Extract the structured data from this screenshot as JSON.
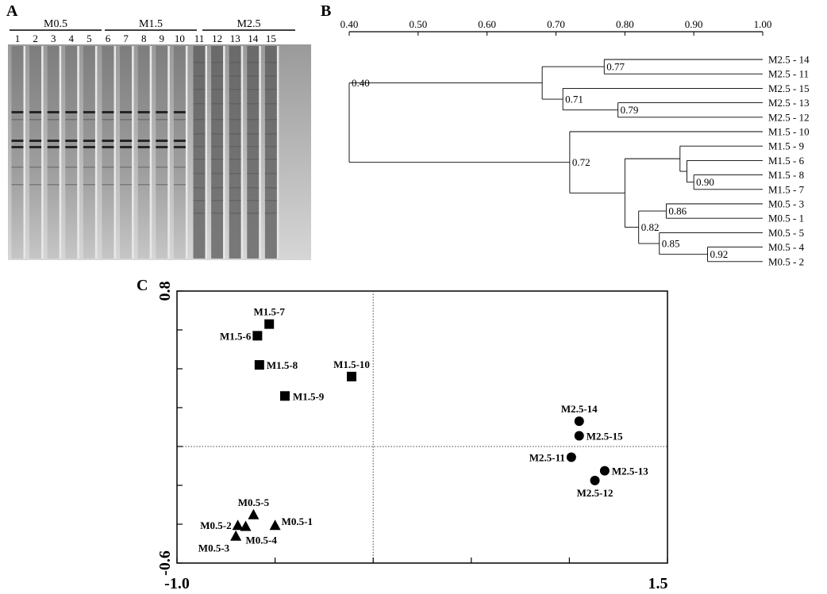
{
  "panels": {
    "a": "A",
    "b": "B",
    "c": "C"
  },
  "gel": {
    "groups": [
      "M0.5",
      "M1.5",
      "M2.5"
    ],
    "lanes": [
      "1",
      "2",
      "3",
      "4",
      "5",
      "6",
      "7",
      "8",
      "9",
      "10",
      "11",
      "12",
      "13",
      "14",
      "15"
    ]
  },
  "chart_data": [
    {
      "type": "dendrogram",
      "axis_ticks": [
        "0.40",
        "0.50",
        "0.60",
        "0.70",
        "0.80",
        "0.90",
        "1.00"
      ],
      "xlim": [
        0.4,
        1.0
      ],
      "leaves": [
        "M2.5 - 14",
        "M2.5 - 11",
        "M2.5 - 15",
        "M2.5 - 13",
        "M2.5 - 12",
        "M1.5 - 10",
        "M1.5 - 9",
        "M1.5 - 6",
        "M1.5 - 8",
        "M1.5 - 7",
        "M0.5 - 3",
        "M0.5 - 1",
        "M0.5 - 5",
        "M0.5 - 4",
        "M0.5 - 2"
      ],
      "nodes": [
        {
          "id": "n77",
          "similarity": 0.77,
          "label": "0.77",
          "children": [
            "M2.5 - 14",
            "M2.5 - 11"
          ]
        },
        {
          "id": "n79",
          "similarity": 0.79,
          "label": "0.79",
          "children": [
            "M2.5 - 13",
            "M2.5 - 12"
          ]
        },
        {
          "id": "n71",
          "similarity": 0.71,
          "label": "0.71",
          "children": [
            "M2.5 - 15",
            "n79"
          ]
        },
        {
          "id": "n68",
          "similarity": 0.68,
          "label": "",
          "children": [
            "n77",
            "n71"
          ]
        },
        {
          "id": "n90",
          "similarity": 0.9,
          "label": "0.90",
          "children": [
            "M1.5 - 8",
            "M1.5 - 7"
          ]
        },
        {
          "id": "n89",
          "similarity": 0.89,
          "label": "",
          "children": [
            "M1.5 - 6",
            "n90"
          ]
        },
        {
          "id": "n88",
          "similarity": 0.88,
          "label": "",
          "children": [
            "M1.5 - 9",
            "n89"
          ]
        },
        {
          "id": "n86",
          "similarity": 0.86,
          "label": "0.86",
          "children": [
            "M0.5 - 3",
            "M0.5 - 1"
          ]
        },
        {
          "id": "n92",
          "similarity": 0.92,
          "label": "0.92",
          "children": [
            "M0.5 - 4",
            "M0.5 - 2"
          ]
        },
        {
          "id": "n85",
          "similarity": 0.85,
          "label": "0.85",
          "children": [
            "M0.5 - 5",
            "n92"
          ]
        },
        {
          "id": "n82",
          "similarity": 0.82,
          "label": "0.82",
          "children": [
            "n86",
            "n85"
          ]
        },
        {
          "id": "n80",
          "similarity": 0.8,
          "label": "",
          "children": [
            "n88",
            "n82"
          ]
        },
        {
          "id": "n72",
          "similarity": 0.72,
          "label": "0.72",
          "children": [
            "M1.5 - 10",
            "n80"
          ]
        },
        {
          "id": "n40",
          "similarity": 0.4,
          "label": "0.40",
          "children": [
            "n68",
            "n72"
          ]
        }
      ]
    },
    {
      "type": "scatter",
      "xlim": [
        -1.0,
        1.5
      ],
      "ylim": [
        -0.6,
        0.8
      ],
      "x_tick_labels": [
        "-1.0",
        "1.5"
      ],
      "y_tick_labels": [
        "0.8",
        "-0.6"
      ],
      "grid": "dotted zero lines",
      "series": [
        {
          "marker": "square",
          "points": [
            {
              "label": "M1.5-7",
              "x": -0.53,
              "y": 0.63
            },
            {
              "label": "M1.5-6",
              "x": -0.59,
              "y": 0.57
            },
            {
              "label": "M1.5-8",
              "x": -0.58,
              "y": 0.42
            },
            {
              "label": "M1.5-10",
              "x": -0.11,
              "y": 0.36
            },
            {
              "label": "M1.5-9",
              "x": -0.45,
              "y": 0.26
            }
          ]
        },
        {
          "marker": "circle",
          "points": [
            {
              "label": "M2.5-14",
              "x": 1.05,
              "y": 0.13
            },
            {
              "label": "M2.5-15",
              "x": 1.05,
              "y": 0.055
            },
            {
              "label": "M2.5-11",
              "x": 1.01,
              "y": -0.055
            },
            {
              "label": "M2.5-13",
              "x": 1.18,
              "y": -0.125
            },
            {
              "label": "M2.5-12",
              "x": 1.13,
              "y": -0.175
            }
          ]
        },
        {
          "marker": "triangle",
          "points": [
            {
              "label": "M0.5-5",
              "x": -0.61,
              "y": -0.35
            },
            {
              "label": "M0.5-2",
              "x": -0.69,
              "y": -0.405
            },
            {
              "label": "M0.5-4",
              "x": -0.65,
              "y": -0.41
            },
            {
              "label": "M0.5-1",
              "x": -0.5,
              "y": -0.405
            },
            {
              "label": "M0.5-3",
              "x": -0.7,
              "y": -0.46
            }
          ]
        }
      ]
    }
  ]
}
